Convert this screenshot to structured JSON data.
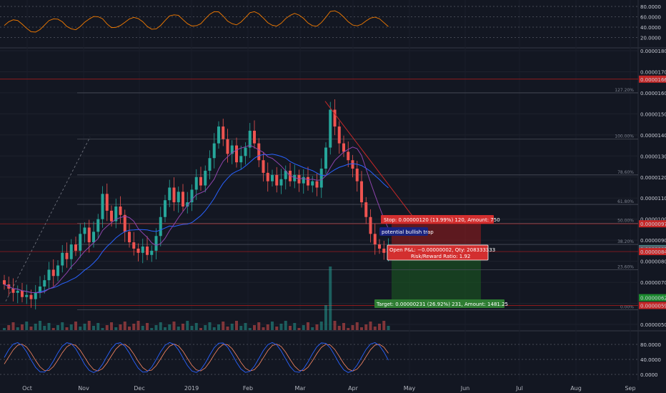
{
  "chart_data": {
    "type": "candlestick",
    "colors": {
      "up": "#26a69a",
      "down": "#ef5350",
      "ma1": "#8e44ad",
      "ma2": "#2962ff",
      "rsi": "#f57c00",
      "stoch_k": "#2962ff",
      "stoch_d": "#ff8a65",
      "stop_zone": "#b71c1c",
      "target_zone": "#1b5e20"
    },
    "x_labels": [
      "Oct",
      "Nov",
      "Dec",
      "2019",
      "Feb",
      "Mar",
      "Apr",
      "May",
      "Jun",
      "Jul",
      "Aug",
      "Sep"
    ],
    "price_axis": {
      "ylim": [
        4.5e-06,
        1.8e-06
      ],
      "ticks": [
        "0.00000500",
        "0.00000600",
        "0.00000700",
        "0.00000800",
        "0.00000900",
        "0.00001000",
        "0.00001100",
        "0.00001200",
        "0.00001300",
        "0.00001400",
        "0.00001500",
        "0.00001600",
        "0.00001700",
        "0.00001800"
      ]
    },
    "price_badges": [
      {
        "value": "0.00001665",
        "color": "#c62828"
      },
      {
        "value": "0.00000978",
        "color": "#c62828"
      },
      {
        "value": "0.00000860",
        "color": "#26a69a"
      },
      {
        "value": "0.00000858",
        "color": "#5d606b"
      },
      {
        "value": "0.00000846",
        "color": "#c62828"
      },
      {
        "value": "0.00000627",
        "color": "#1b8a2e"
      },
      {
        "value": "0.00000590",
        "color": "#c62828"
      }
    ],
    "fib_labels": [
      {
        "label": "127.20%",
        "price": 1.6e-05
      },
      {
        "label": "100.00%",
        "price": 1.38e-05
      },
      {
        "label": "78.60%",
        "price": 1.21e-05
      },
      {
        "label": "61.80%",
        "price": 1.07e-05
      },
      {
        "label": "50.00%",
        "price": 9.8e-06
      },
      {
        "label": "38.20%",
        "price": 8.8e-06
      },
      {
        "label": "23.60%",
        "price": 7.6e-06
      },
      {
        "label": "0.00%",
        "price": 5.7e-06
      }
    ],
    "rsi_axis": {
      "ticks": [
        "80.0000",
        "60.0000",
        "40.0000",
        "20.0000"
      ]
    },
    "stoch_axis": {
      "ticks": [
        "80.0000",
        "40.0000",
        "0.0000"
      ]
    },
    "candles_close": [
      6.9,
      6.7,
      6.5,
      6.6,
      6.3,
      6.4,
      6.2,
      6.5,
      6.8,
      7.1,
      7.6,
      7.3,
      7.8,
      8.4,
      8.1,
      8.8,
      8.5,
      9.3,
      9.6,
      8.9,
      9.4,
      10.0,
      11.2,
      10.4,
      9.9,
      10.6,
      10.2,
      9.4,
      8.9,
      8.6,
      8.4,
      8.7,
      8.3,
      8.5,
      9.2,
      10.1,
      10.9,
      11.5,
      10.8,
      11.3,
      10.6,
      10.8,
      11.4,
      12.0,
      11.6,
      12.3,
      12.9,
      13.6,
      14.4,
      13.8,
      13.1,
      13.5,
      12.7,
      13.0,
      13.4,
      14.2,
      13.6,
      12.8,
      12.2,
      11.8,
      12.1,
      11.6,
      11.9,
      12.3,
      11.8,
      12.1,
      11.7,
      12.0,
      11.6,
      11.8,
      11.5,
      12.4,
      13.4,
      15.2,
      14.4,
      13.6,
      13.2,
      12.8,
      12.4,
      11.8,
      10.8,
      10.1,
      9.3,
      8.8,
      8.6,
      8.4,
      8.6
    ],
    "volume_bars_approx": "relative heights only",
    "annotations": {
      "stop": "Stop: 0.00000120 (13.99%) 120, Amount: 750",
      "trap": "potential bullish trap",
      "pnl_line1": "Open P&L: −0.00000002, Qty: 208333333",
      "pnl_line2": "Risk/Reward Ratio: 1.92",
      "target": "Target: 0.00000231 (26.92%) 231, Amount: 1481.25"
    }
  }
}
